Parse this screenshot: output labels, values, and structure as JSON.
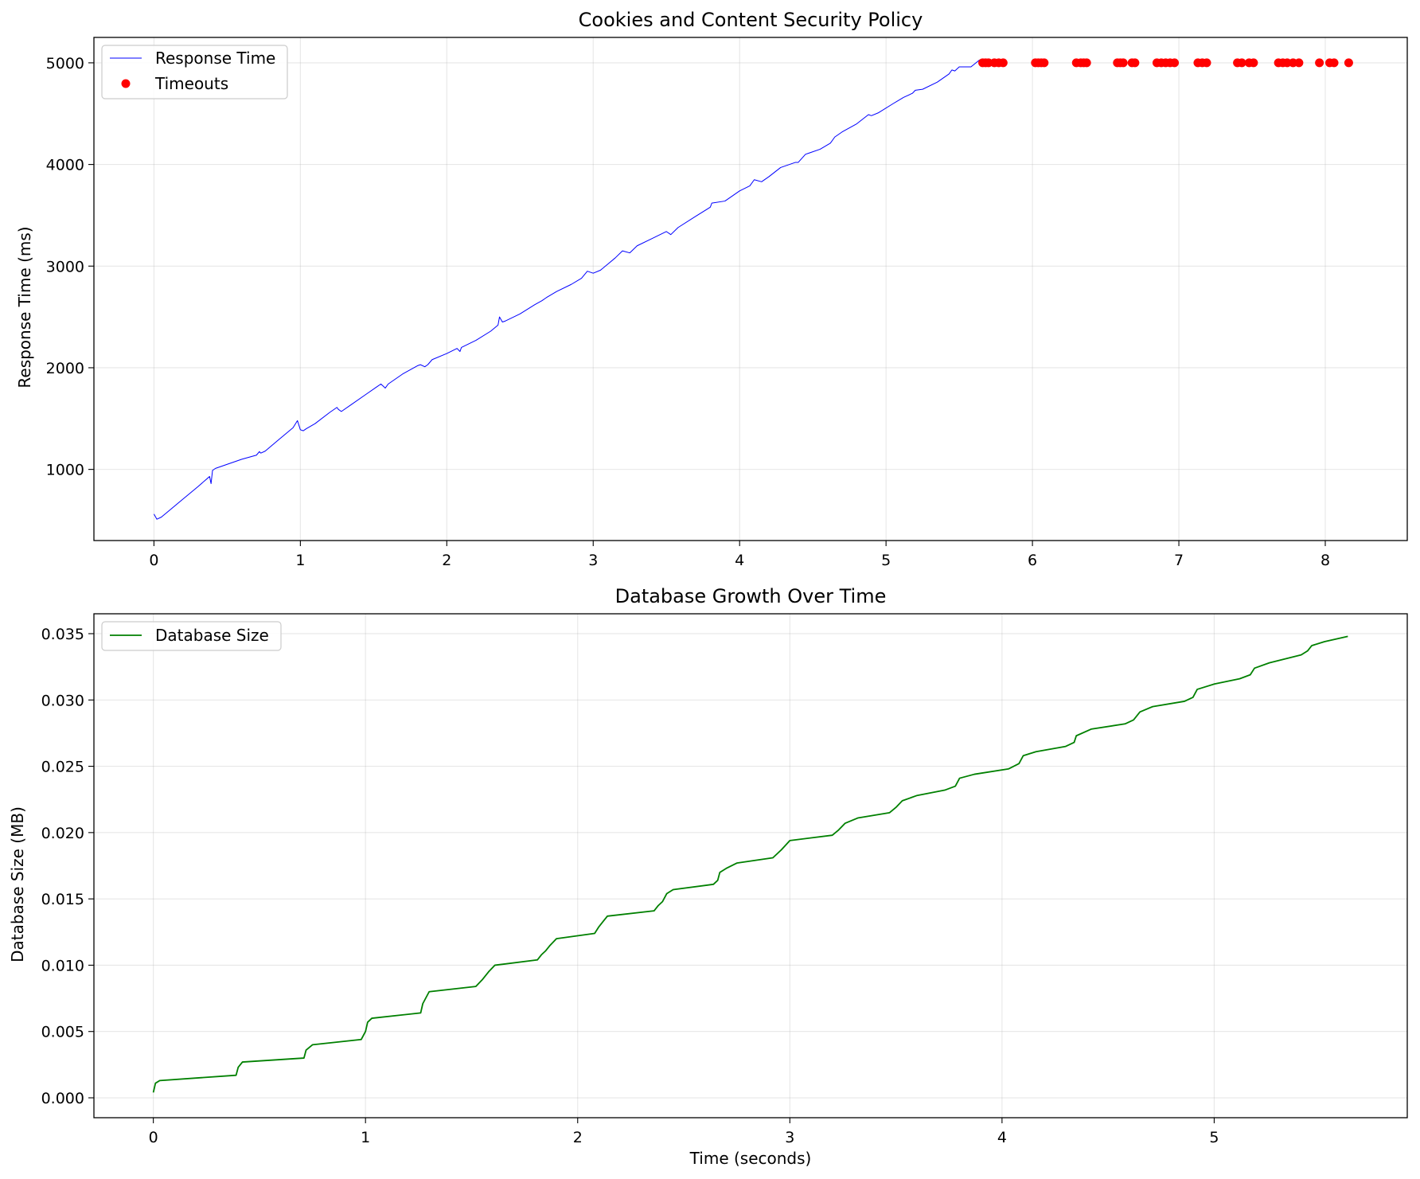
{
  "chart_data": [
    {
      "type": "line",
      "title": "Cookies and Content Security Policy",
      "xlabel": "",
      "ylabel": "Response Time (ms)",
      "xlim": [
        -0.41,
        8.56
      ],
      "ylim": [
        300,
        5250
      ],
      "xticks": [
        "0",
        "1",
        "2",
        "3",
        "4",
        "5",
        "6",
        "7",
        "8"
      ],
      "yticks": [
        "1000",
        "2000",
        "3000",
        "4000",
        "5000"
      ],
      "grid": true,
      "legend_position": "top-left",
      "series": [
        {
          "name": "Response Time",
          "kind": "line",
          "color": "#0000ff",
          "x": [
            0.0,
            0.02,
            0.05,
            0.1,
            0.2,
            0.3,
            0.38,
            0.39,
            0.4,
            0.42,
            0.5,
            0.6,
            0.7,
            0.72,
            0.73,
            0.76,
            0.85,
            0.95,
            0.98,
            1.0,
            1.02,
            1.04,
            1.1,
            1.2,
            1.25,
            1.26,
            1.28,
            1.35,
            1.45,
            1.52,
            1.55,
            1.58,
            1.6,
            1.7,
            1.8,
            1.82,
            1.85,
            1.87,
            1.9,
            2.0,
            2.07,
            2.09,
            2.1,
            2.2,
            2.3,
            2.35,
            2.36,
            2.38,
            2.4,
            2.5,
            2.6,
            2.65,
            2.68,
            2.75,
            2.85,
            2.92,
            2.96,
            3.0,
            3.05,
            3.15,
            3.2,
            3.25,
            3.3,
            3.4,
            3.5,
            3.53,
            3.58,
            3.7,
            3.8,
            3.81,
            3.9,
            4.0,
            4.07,
            4.1,
            4.15,
            4.2,
            4.28,
            4.38,
            4.4,
            4.45,
            4.55,
            4.62,
            4.65,
            4.7,
            4.8,
            4.88,
            4.9,
            4.95,
            5.05,
            5.12,
            5.18,
            5.2,
            5.25,
            5.35,
            5.43,
            5.45,
            5.47,
            5.5,
            5.58,
            5.64
          ],
          "y": [
            560,
            510,
            530,
            590,
            710,
            830,
            930,
            860,
            990,
            1010,
            1050,
            1100,
            1140,
            1175,
            1160,
            1180,
            1290,
            1410,
            1480,
            1390,
            1380,
            1400,
            1450,
            1560,
            1610,
            1590,
            1570,
            1640,
            1740,
            1810,
            1840,
            1800,
            1840,
            1940,
            2020,
            2030,
            2010,
            2030,
            2080,
            2140,
            2190,
            2160,
            2200,
            2270,
            2360,
            2420,
            2500,
            2450,
            2460,
            2530,
            2620,
            2660,
            2690,
            2750,
            2820,
            2880,
            2950,
            2930,
            2960,
            3080,
            3150,
            3130,
            3200,
            3270,
            3340,
            3310,
            3380,
            3490,
            3580,
            3620,
            3640,
            3740,
            3790,
            3850,
            3830,
            3880,
            3970,
            4020,
            4020,
            4100,
            4150,
            4210,
            4270,
            4320,
            4400,
            4490,
            4480,
            4510,
            4600,
            4660,
            4700,
            4730,
            4740,
            4810,
            4890,
            4930,
            4920,
            4960,
            4960,
            5030
          ]
        },
        {
          "name": "Timeouts",
          "kind": "scatter",
          "color": "#ff0000",
          "x": [
            5.66,
            5.68,
            5.7,
            5.74,
            5.77,
            5.8,
            6.02,
            6.04,
            6.06,
            6.08,
            6.3,
            6.33,
            6.35,
            6.37,
            6.58,
            6.6,
            6.62,
            6.68,
            6.7,
            6.85,
            6.88,
            6.91,
            6.94,
            6.97,
            7.13,
            7.16,
            7.19,
            7.4,
            7.43,
            7.48,
            7.51,
            7.68,
            7.71,
            7.74,
            7.78,
            7.82,
            7.96,
            8.03,
            8.06,
            8.16
          ],
          "y": [
            5000,
            5000,
            5000,
            5000,
            5000,
            5000,
            5000,
            5000,
            5000,
            5000,
            5000,
            5000,
            5000,
            5000,
            5000,
            5000,
            5000,
            5000,
            5000,
            5000,
            5000,
            5000,
            5000,
            5000,
            5000,
            5000,
            5000,
            5000,
            5000,
            5000,
            5000,
            5000,
            5000,
            5000,
            5000,
            5000,
            5000,
            5000,
            5000,
            5000
          ]
        }
      ]
    },
    {
      "type": "line",
      "title": "Database Growth Over Time",
      "xlabel": "Time (seconds)",
      "ylabel": "Database Size (MB)",
      "xlim": [
        -0.28,
        5.91
      ],
      "ylim": [
        -0.0015,
        0.0365
      ],
      "xticks": [
        "0",
        "1",
        "2",
        "3",
        "4",
        "5"
      ],
      "yticks": [
        "0.000",
        "0.005",
        "0.010",
        "0.015",
        "0.020",
        "0.025",
        "0.030",
        "0.035"
      ],
      "grid": true,
      "legend_position": "top-left",
      "series": [
        {
          "name": "Database Size",
          "kind": "line",
          "color": "#008000",
          "x": [
            0.0,
            0.01,
            0.03,
            0.39,
            0.4,
            0.42,
            0.71,
            0.72,
            0.75,
            0.98,
            1.0,
            1.01,
            1.03,
            1.26,
            1.27,
            1.28,
            1.3,
            1.52,
            1.55,
            1.58,
            1.61,
            1.81,
            1.83,
            1.85,
            1.87,
            1.9,
            2.08,
            2.1,
            2.12,
            2.14,
            2.36,
            2.38,
            2.4,
            2.42,
            2.45,
            2.64,
            2.66,
            2.67,
            2.7,
            2.75,
            2.92,
            2.96,
            3.0,
            3.2,
            3.23,
            3.26,
            3.32,
            3.47,
            3.5,
            3.53,
            3.6,
            3.73,
            3.78,
            3.8,
            3.87,
            4.03,
            4.08,
            4.1,
            4.16,
            4.3,
            4.34,
            4.35,
            4.42,
            4.58,
            4.62,
            4.65,
            4.71,
            4.86,
            4.9,
            4.92,
            5.0,
            5.12,
            5.17,
            5.19,
            5.26,
            5.41,
            5.44,
            5.46,
            5.52,
            5.63
          ],
          "y": [
            0.0004,
            0.0011,
            0.0013,
            0.0017,
            0.0023,
            0.0027,
            0.003,
            0.0036,
            0.004,
            0.0044,
            0.005,
            0.0057,
            0.006,
            0.0064,
            0.0071,
            0.0074,
            0.008,
            0.0084,
            0.0089,
            0.0095,
            0.01,
            0.0104,
            0.0108,
            0.0111,
            0.0115,
            0.012,
            0.0124,
            0.0129,
            0.0133,
            0.0137,
            0.0141,
            0.0145,
            0.0148,
            0.0154,
            0.0157,
            0.0161,
            0.0164,
            0.017,
            0.0173,
            0.0177,
            0.0181,
            0.0187,
            0.0194,
            0.0198,
            0.0202,
            0.0207,
            0.0211,
            0.0215,
            0.0219,
            0.0224,
            0.0228,
            0.0232,
            0.0235,
            0.0241,
            0.0244,
            0.0248,
            0.0252,
            0.0258,
            0.0261,
            0.0265,
            0.0268,
            0.0273,
            0.0278,
            0.0282,
            0.0285,
            0.0291,
            0.0295,
            0.0299,
            0.0302,
            0.0308,
            0.0312,
            0.0316,
            0.0319,
            0.0324,
            0.0328,
            0.0334,
            0.0337,
            0.0341,
            0.0344,
            0.0348
          ]
        }
      ]
    }
  ]
}
